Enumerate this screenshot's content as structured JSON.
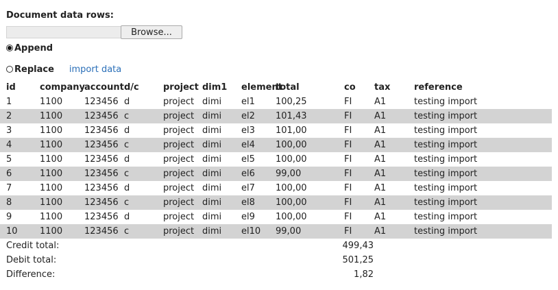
{
  "section_title": "Document data rows:",
  "file": {
    "path_value": "",
    "browse_label": "Browse..."
  },
  "mode": {
    "append_label": "Append",
    "replace_label": "Replace",
    "selected": "Append",
    "import_link": "import data"
  },
  "table": {
    "columns": [
      "id",
      "company",
      "account",
      "d/c",
      "project",
      "dim1",
      "element",
      "total",
      "co",
      "tax",
      "reference"
    ],
    "rows": [
      [
        "1",
        "1100",
        "123456",
        "d",
        "project",
        "dimi",
        "el1",
        "100,25",
        "FI",
        "A1",
        "testing import"
      ],
      [
        "2",
        "1100",
        "123456",
        "c",
        "project",
        "dimi",
        "el2",
        "101,43",
        "FI",
        "A1",
        "testing import"
      ],
      [
        "3",
        "1100",
        "123456",
        "d",
        "project",
        "dimi",
        "el3",
        "101,00",
        "FI",
        "A1",
        "testing import"
      ],
      [
        "4",
        "1100",
        "123456",
        "c",
        "project",
        "dimi",
        "el4",
        "100,00",
        "FI",
        "A1",
        "testing import"
      ],
      [
        "5",
        "1100",
        "123456",
        "d",
        "project",
        "dimi",
        "el5",
        "100,00",
        "FI",
        "A1",
        "testing import"
      ],
      [
        "6",
        "1100",
        "123456",
        "c",
        "project",
        "dimi",
        "el6",
        "99,00",
        "FI",
        "A1",
        "testing import"
      ],
      [
        "7",
        "1100",
        "123456",
        "d",
        "project",
        "dimi",
        "el7",
        "100,00",
        "FI",
        "A1",
        "testing import"
      ],
      [
        "8",
        "1100",
        "123456",
        "c",
        "project",
        "dimi",
        "el8",
        "100,00",
        "FI",
        "A1",
        "testing import"
      ],
      [
        "9",
        "1100",
        "123456",
        "d",
        "project",
        "dimi",
        "el9",
        "100,00",
        "FI",
        "A1",
        "testing import"
      ],
      [
        "10",
        "1100",
        "123456",
        "c",
        "project",
        "dimi",
        "el10",
        "99,00",
        "FI",
        "A1",
        "testing import"
      ]
    ]
  },
  "totals": {
    "credit_label": "Credit total:",
    "credit_value": "499,43",
    "debit_label": "Debit total:",
    "debit_value": "501,25",
    "difference_label": "Difference:",
    "difference_value": "1,82"
  },
  "colors": {
    "alt_row": "#d3d3d3",
    "link": "#2a6fb8"
  }
}
